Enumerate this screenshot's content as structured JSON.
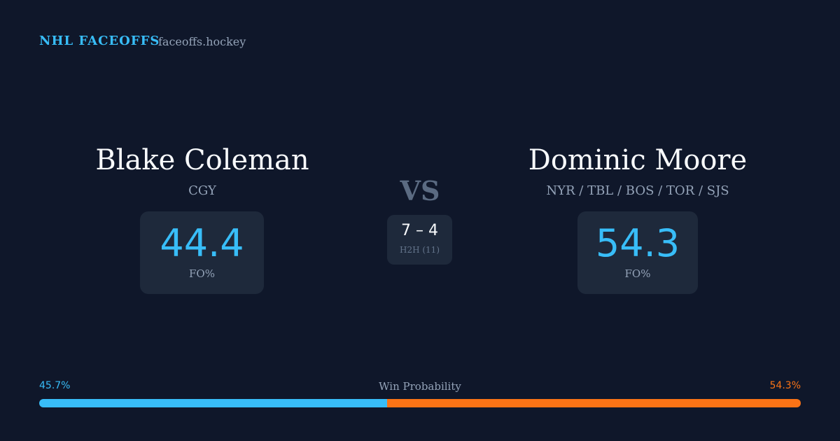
{
  "header": {
    "brand": "NHL FACEOFFS",
    "site": "faceoffs.hockey"
  },
  "players": [
    {
      "name": "Blake Coleman",
      "teams": "CGY",
      "fo_pct": 44.4,
      "fo_label": "FO%"
    },
    {
      "name": "Dominic Moore",
      "teams": "NYR / TBL / BOS / TOR / SJS",
      "fo_pct": 54.3,
      "fo_label": "FO%"
    }
  ],
  "vs": "VS",
  "h2h": {
    "score": "7 – 4",
    "label": "H2H (11)"
  },
  "win_probability": {
    "title": "Win Probability",
    "values": [
      45.7,
      54.3
    ],
    "value_labels": [
      "45.7%",
      "54.3%"
    ],
    "colors": [
      "#38bdf8",
      "#f97316"
    ]
  }
}
